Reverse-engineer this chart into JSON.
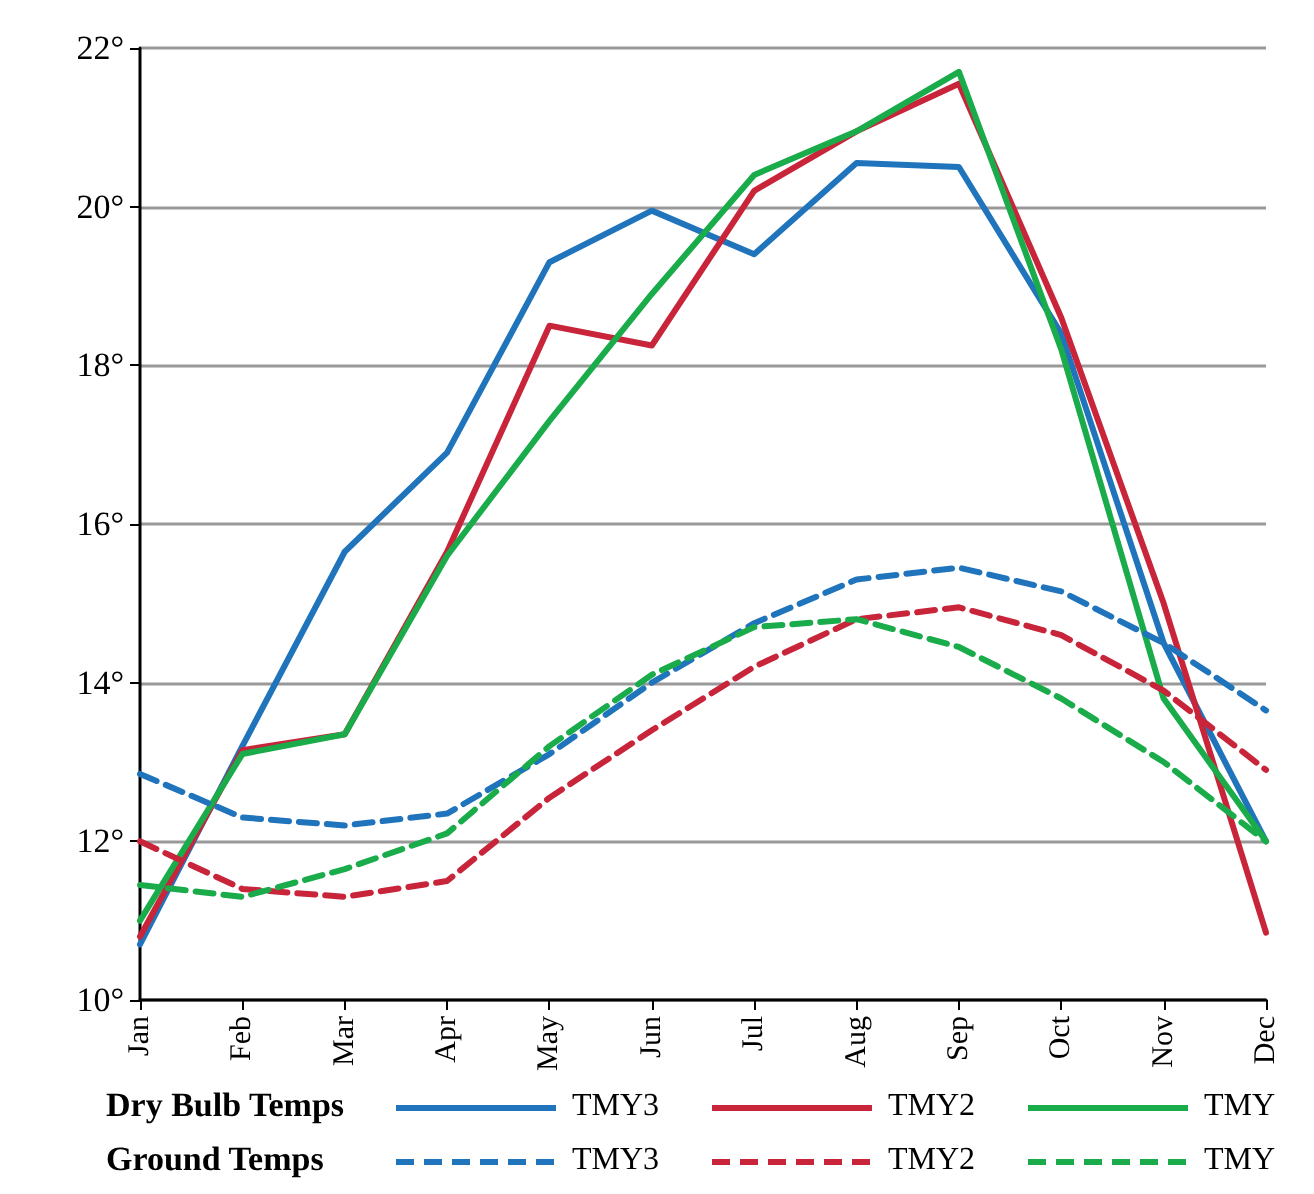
{
  "chart_data": {
    "type": "line",
    "categories": [
      "Jan",
      "Feb",
      "Mar",
      "Apr",
      "May",
      "Jun",
      "Jul",
      "Aug",
      "Sep",
      "Oct",
      "Nov",
      "Dec"
    ],
    "ylim": [
      10,
      22
    ],
    "yticks": [
      {
        "value": 10,
        "label": "10°"
      },
      {
        "value": 12,
        "label": "12°"
      },
      {
        "value": 14,
        "label": "14°"
      },
      {
        "value": 16,
        "label": "16°"
      },
      {
        "value": 18,
        "label": "18°"
      },
      {
        "value": 20,
        "label": "20°"
      },
      {
        "value": 22,
        "label": "22°"
      }
    ],
    "grid": "y",
    "legend": "bottom",
    "marker": "none",
    "annotations": [
      "Dry Bulb Temps",
      "Ground Temps"
    ],
    "series": [
      {
        "name": "TMY3",
        "color": "#1f74bc",
        "line_style": "solid",
        "values": [
          10.7,
          13.2,
          15.65,
          16.9,
          19.3,
          19.95,
          19.4,
          20.55,
          20.5,
          18.4,
          14.5,
          12.0
        ]
      },
      {
        "name": "TMY2",
        "color": "#c8243a",
        "line_style": "solid",
        "values": [
          10.8,
          13.15,
          13.35,
          15.65,
          18.5,
          18.25,
          20.2,
          20.95,
          21.55,
          18.6,
          15.0,
          10.85
        ]
      },
      {
        "name": "TMY",
        "color": "#1aab4a",
        "line_style": "solid",
        "values": [
          11.0,
          13.1,
          13.35,
          15.6,
          17.3,
          18.9,
          20.4,
          20.95,
          21.7,
          18.2,
          13.8,
          12.0
        ]
      },
      {
        "name": "TMY3",
        "color": "#1f74bc",
        "line_style": "dashed",
        "values": [
          12.85,
          12.3,
          12.2,
          12.35,
          13.1,
          14.0,
          14.75,
          15.3,
          15.45,
          15.15,
          14.5,
          13.65
        ]
      },
      {
        "name": "TMY2",
        "color": "#c8243a",
        "line_style": "dashed",
        "values": [
          12.0,
          11.4,
          11.3,
          11.5,
          12.55,
          13.4,
          14.2,
          14.8,
          14.95,
          14.6,
          13.9,
          12.9
        ]
      },
      {
        "name": "TMY",
        "color": "#1aab4a",
        "line_style": "dashed",
        "values": [
          11.45,
          11.3,
          11.65,
          12.1,
          13.2,
          14.1,
          14.7,
          14.8,
          14.45,
          13.8,
          13.0,
          12.0
        ]
      }
    ]
  }
}
